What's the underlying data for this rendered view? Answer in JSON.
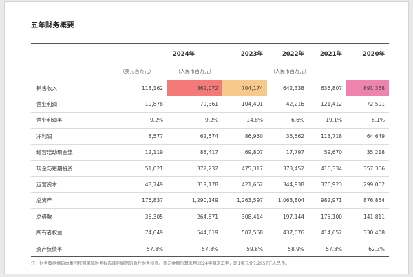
{
  "title": "五年财务概要",
  "years": [
    "2024年",
    "2023年",
    "2022年",
    "2021年",
    "2020年"
  ],
  "units": {
    "usd": "（美元百万元）",
    "rmb_2024": "（人民币百万元）",
    "rmb_prior": "（人民币百万元）"
  },
  "rows": [
    {
      "label": "销售收入",
      "values": [
        "118,162",
        "862,072",
        "704,174",
        "642,338",
        "636,807",
        "891,368"
      ]
    },
    {
      "label": "营业利润",
      "values": [
        "10,878",
        "79,361",
        "104,401",
        "42,216",
        "121,412",
        "72,501"
      ]
    },
    {
      "label": "营业利润率",
      "values": [
        "9.2%",
        "9.2%",
        "14.8%",
        "6.6%",
        "19.1%",
        "8.1%"
      ]
    },
    {
      "label": "净利润",
      "values": [
        "8,577",
        "62,574",
        "86,950",
        "35,562",
        "113,718",
        "64,649"
      ]
    },
    {
      "label": "经营活动现金流",
      "values": [
        "12,119",
        "88,417",
        "69,807",
        "17,797",
        "59,670",
        "35,218"
      ]
    },
    {
      "label": "现金与短期投资",
      "values": [
        "51,021",
        "372,232",
        "475,317",
        "373,452",
        "416,334",
        "357,366"
      ]
    },
    {
      "label": "运营资本",
      "values": [
        "43,749",
        "319,178",
        "421,662",
        "344,938",
        "376,923",
        "299,062"
      ]
    },
    {
      "label": "总资产",
      "values": [
        "176,837",
        "1,290,149",
        "1,263,597",
        "1,063,804",
        "982,971",
        "876,854"
      ]
    },
    {
      "label": "总借款",
      "values": [
        "36,305",
        "264,871",
        "308,414",
        "197,144",
        "175,100",
        "141,811"
      ]
    },
    {
      "label": "所有者权益",
      "values": [
        "74,649",
        "544,619",
        "507,568",
        "437,076",
        "414,652",
        "330,408"
      ]
    },
    {
      "label": "资产负债率",
      "values": [
        "57.8%",
        "57.8%",
        "59.8%",
        "58.9%",
        "57.8%",
        "62.3%"
      ]
    }
  ],
  "highlight_colors": {
    "red": "#f47a7a",
    "orange": "#f7c98a",
    "pink": "#ee84ad"
  },
  "note": "注：财务数据摘自本集团按照国际财务报告准则编制的合并财务报表。美元金额折算采用2024年期末汇率，即1美元兑7.2957元人民币。"
}
